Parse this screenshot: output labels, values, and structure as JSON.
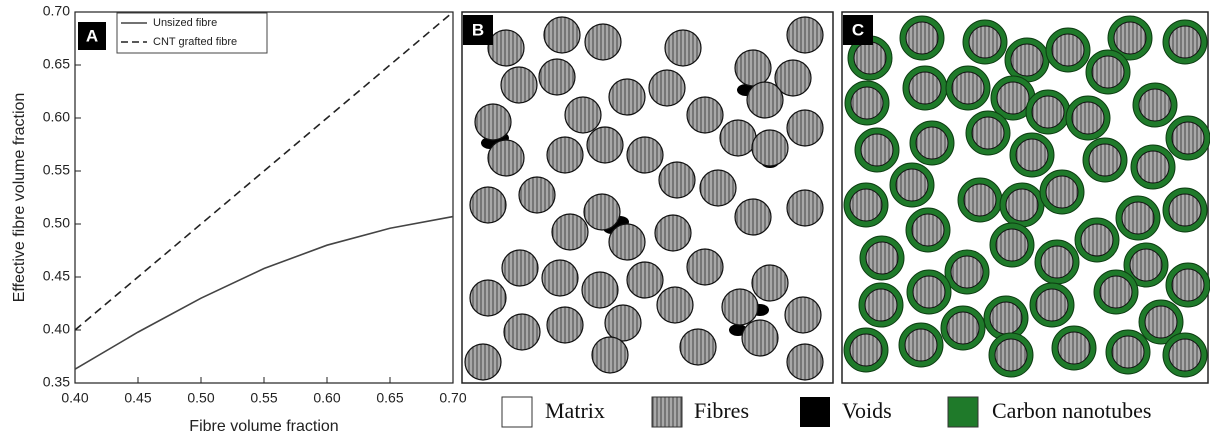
{
  "chart_data": {
    "type": "line",
    "panel_label": "A",
    "xlabel": "Fibre volume fraction",
    "ylabel": "Effective fibre volume fraction",
    "x": [
      0.4,
      0.45,
      0.5,
      0.55,
      0.6,
      0.65,
      0.7
    ],
    "series": [
      {
        "name": "Unsized fibre",
        "color": "#444444",
        "dash": false,
        "values": [
          0.363,
          0.398,
          0.43,
          0.458,
          0.48,
          0.496,
          0.507
        ]
      },
      {
        "name": "CNT grafted fibre",
        "color": "#222222",
        "dash": true,
        "values": [
          0.4,
          0.45,
          0.5,
          0.55,
          0.6,
          0.65,
          0.7
        ]
      }
    ],
    "xlim": [
      0.4,
      0.7
    ],
    "ylim": [
      0.35,
      0.7
    ],
    "xticks": [
      {
        "value": 0.4,
        "label": "0.40"
      },
      {
        "value": 0.45,
        "label": "0.45"
      },
      {
        "value": 0.5,
        "label": "0.50"
      },
      {
        "value": 0.55,
        "label": "0.55"
      },
      {
        "value": 0.6,
        "label": "0.60"
      },
      {
        "value": 0.65,
        "label": "0.65"
      },
      {
        "value": 0.7,
        "label": "0.70"
      }
    ],
    "yticks": [
      {
        "value": 0.35,
        "label": "0.35"
      },
      {
        "value": 0.4,
        "label": "0.40"
      },
      {
        "value": 0.45,
        "label": "0.45"
      },
      {
        "value": 0.5,
        "label": "0.50"
      },
      {
        "value": 0.55,
        "label": "0.55"
      },
      {
        "value": 0.6,
        "label": "0.60"
      },
      {
        "value": 0.65,
        "label": "0.65"
      },
      {
        "value": 0.7,
        "label": "0.70"
      }
    ],
    "legend_position": "upper left"
  },
  "schematic": {
    "panels": [
      "B",
      "C"
    ],
    "legend": [
      "Matrix",
      "Fibres",
      "Voids",
      "Carbon nanotubes"
    ]
  }
}
